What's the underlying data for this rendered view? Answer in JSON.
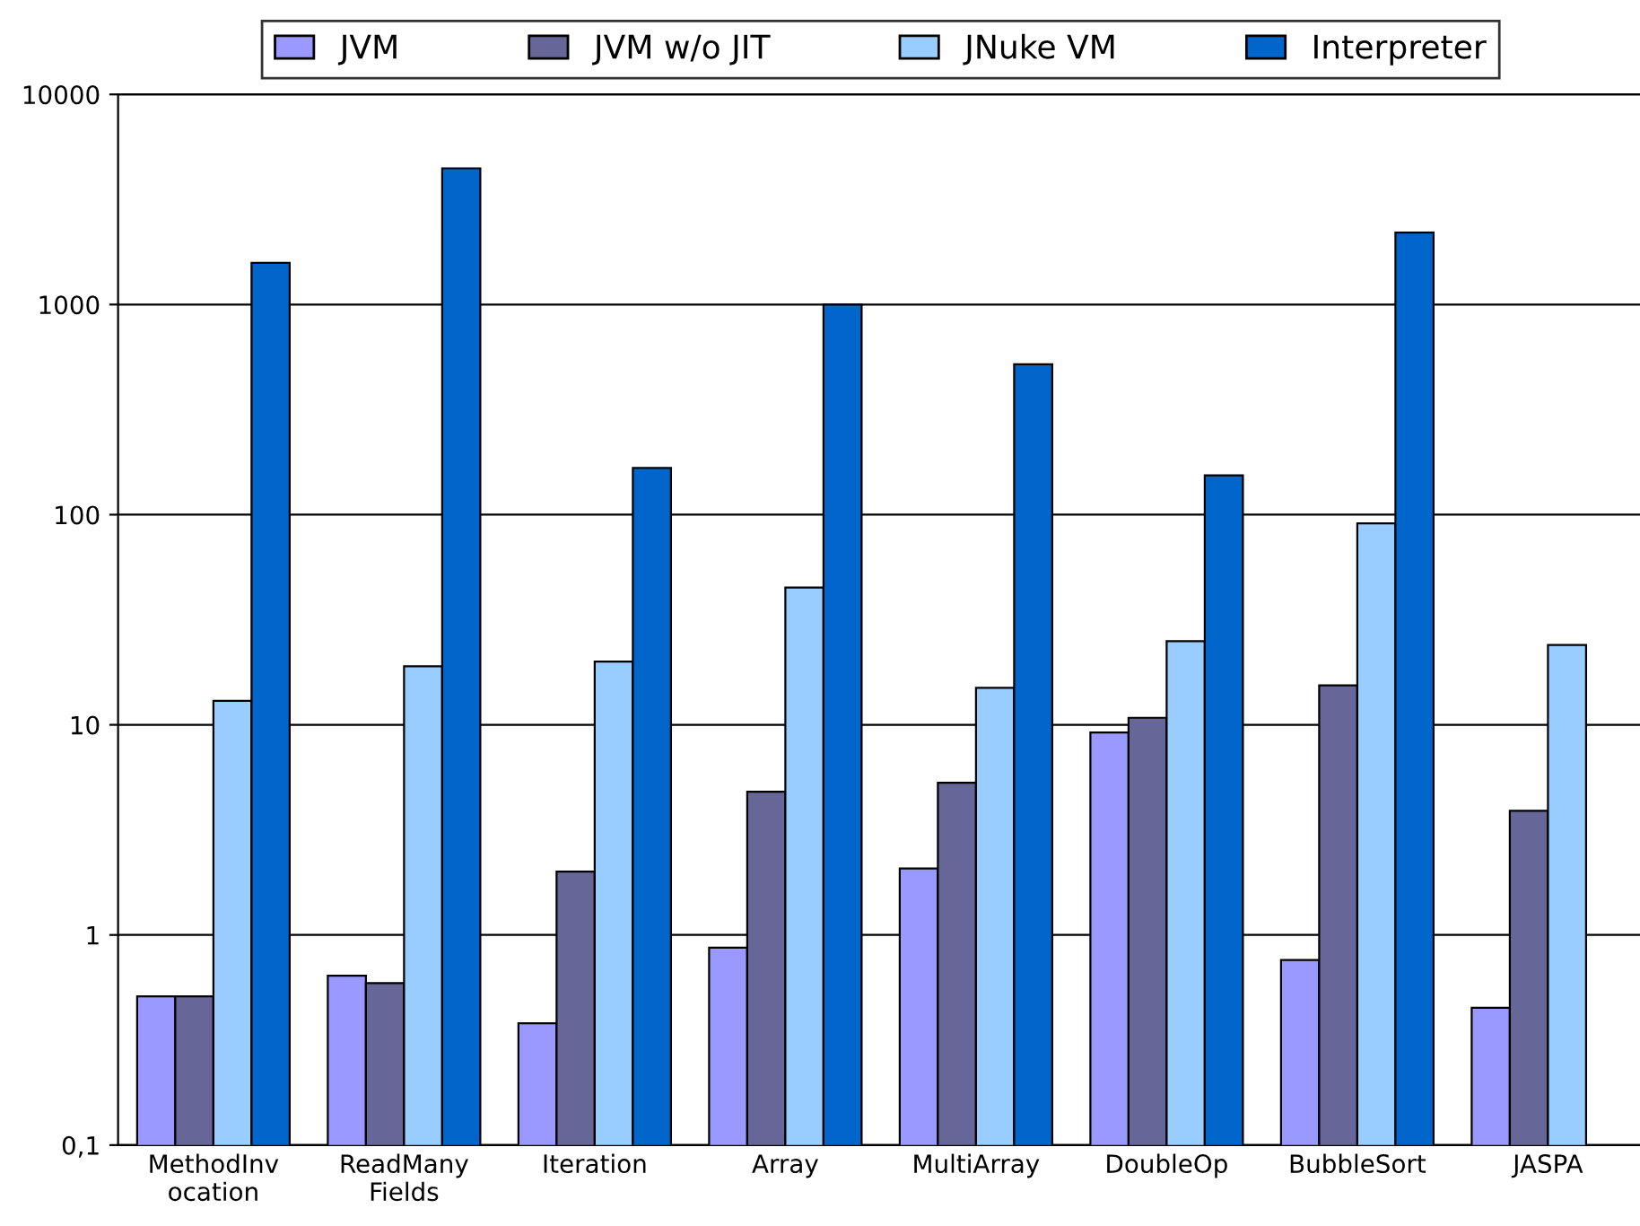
{
  "chart_data": {
    "type": "bar",
    "log": true,
    "grid": "y",
    "legend": "top",
    "categories": [
      "MethodInv\nocation",
      "ReadMany\nFields",
      "Iteration",
      "Array",
      "MultiArray",
      "DoubleOp",
      "BubbleSort",
      "JASPA"
    ],
    "series": [
      {
        "name": "JVM",
        "color": "#9999ff",
        "values": [
          0.51,
          0.64,
          0.38,
          0.87,
          2.07,
          9.2,
          0.76,
          0.45
        ]
      },
      {
        "name": "JVM w/o JIT",
        "color": "#666699",
        "values": [
          0.51,
          0.59,
          2.0,
          4.8,
          5.3,
          10.8,
          15.4,
          3.9
        ]
      },
      {
        "name": "JNuke VM",
        "color": "#99ccff",
        "values": [
          13,
          19,
          20,
          45,
          15,
          25,
          91,
          24
        ]
      },
      {
        "name": "Interpreter",
        "color": "#0066cc",
        "values": [
          1580,
          4450,
          167,
          1000,
          520,
          154,
          2200,
          null
        ]
      }
    ],
    "ylim": [
      0.1,
      10000
    ],
    "yticks": [
      {
        "value": 0.1,
        "label": "0,1"
      },
      1,
      10,
      100,
      1000,
      10000
    ]
  }
}
